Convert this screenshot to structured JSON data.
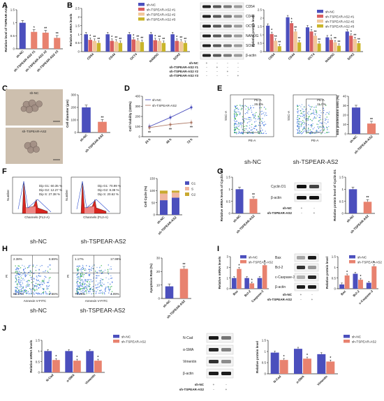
{
  "panel_labels": {
    "A": "A",
    "B": "B",
    "C": "C",
    "D": "D",
    "E": "E",
    "F": "F",
    "G": "G",
    "H": "H",
    "I": "I",
    "J": "J"
  },
  "colors": {
    "nc": "#4b4fbd",
    "sh": "#e8826f",
    "sh1": "#d96060",
    "sh2": "#f2c79a",
    "sh3": "#c9b52a",
    "g1": "#4b4fbd",
    "s": "#f0b6a0",
    "g2": "#c9a930"
  },
  "labels": {
    "sh_nc": "sh-NC",
    "sh_tspear": "sh-TSPEAR-AS2",
    "sh1": "sh-TSPEAR-AS2 #1",
    "sh2": "sh-TSPEAR-AS2 #2",
    "sh3": "sh-TSPEAR-AS2 #3",
    "beta_actin": "β-actin",
    "plus": "+",
    "minus": "-"
  },
  "wb": {
    "B_bands": [
      "CD54",
      "CD44",
      "OCT4",
      "NANOG",
      "SOX2",
      "β-actin"
    ],
    "G_bands": [
      "Cyclin D1",
      "β-actin"
    ],
    "I_bands": [
      "Bax",
      "Bcl-2",
      "c-Caspase-3",
      "β-actin"
    ],
    "J_bands": [
      "N-Cad",
      "α-SMA",
      "Vimentin",
      "β-actin"
    ]
  },
  "micro": {
    "C_top": "sh-NC",
    "C_bottom": "sh-TSPEAR-AS2"
  },
  "flow": {
    "E": [
      {
        "gate": "PE-A",
        "pct": "26.8%",
        "ylab": "SSC-A",
        "xlab": "PE-A"
      },
      {
        "gate": "PE-A",
        "pct": "11.0%",
        "ylab": "SSC-A",
        "xlab": "PE-A"
      }
    ],
    "E_names": [
      "sh-NC",
      "sh-TSPEAR-AS2"
    ],
    "F": [
      {
        "xlab": "Channels (FL2-A)",
        "ylab": "Number",
        "stats": [
          "Dip G1: 60.35 %",
          "Dip G2: 12.27 %",
          "Dip  S: 27.38 %"
        ]
      },
      {
        "xlab": "Channels (FL2-A)",
        "ylab": "Number",
        "stats": [
          "Dip G1: 70.99 %",
          "Dip G2:  8.38 %",
          "Dip  S: 20.62 %"
        ]
      }
    ],
    "F_names": [
      "sh-NC",
      "sh-TSPEAR-AS2"
    ],
    "H": [
      {
        "xlab": "Annexin V-FITC",
        "ylab": "PI",
        "q": [
          "2.38%",
          "6.69%",
          "88.27%",
          "2.66%"
        ]
      },
      {
        "xlab": "Annexin V-FITC",
        "ylab": "PI",
        "q": [
          "1.17%",
          "17.99%",
          "75.25%",
          "4.09%"
        ]
      }
    ],
    "H_names": [
      "sh-NC",
      "sh-TSPEAR-AS2"
    ]
  },
  "chart_data": [
    {
      "id": "A",
      "type": "bar",
      "ylabel": "Relative level of TSPEAR-AS2",
      "ylim": [
        0,
        1.5
      ],
      "ticks": [
        0,
        0.5,
        1,
        1.5
      ],
      "categories": [
        "sh-NC",
        "sh-TSPEAR-AS2 #1",
        "sh-TSPEAR-AS2 #2",
        "sh-TSPEAR-AS2 #3"
      ],
      "values": [
        1.0,
        0.65,
        0.62,
        0.42
      ],
      "sig": [
        "",
        "*",
        "**",
        "**"
      ]
    },
    {
      "id": "B1",
      "type": "bar",
      "ylabel": "Relative mRNA levels",
      "ylim": [
        0,
        2.5
      ],
      "ticks": [
        0,
        0.5,
        1,
        1.5,
        2,
        2.5
      ],
      "categories": [
        "CD54",
        "CD44",
        "OCT4",
        "NANOG",
        "SOX2"
      ],
      "series": [
        {
          "name": "sh-NC",
          "values": [
            1.0,
            1.0,
            1.0,
            1.0,
            1.0
          ]
        },
        {
          "name": "sh-TSPEAR-AS2 #1",
          "values": [
            0.68,
            0.62,
            0.7,
            0.66,
            0.62
          ]
        },
        {
          "name": "sh-TSPEAR-AS2 #2",
          "values": [
            0.62,
            0.58,
            0.64,
            0.62,
            0.58
          ]
        },
        {
          "name": "sh-TSPEAR-AS2 #3",
          "values": [
            0.5,
            0.5,
            0.55,
            0.5,
            0.5
          ]
        }
      ]
    },
    {
      "id": "B2",
      "type": "bar",
      "ylabel": "Relative protein level",
      "ylim": [
        0,
        2.5
      ],
      "ticks": [
        0,
        0.5,
        1,
        1.5,
        2,
        2.5
      ],
      "categories": [
        "CD54",
        "CD44",
        "OCT4",
        "NANOG",
        "SOX2"
      ],
      "series": [
        {
          "name": "sh-NC",
          "values": [
            1.55,
            2.05,
            1.45,
            0.85,
            1.2
          ]
        },
        {
          "name": "sh-TSPEAR-AS2 #1",
          "values": [
            1.05,
            1.7,
            1.2,
            0.7,
            0.95
          ]
        },
        {
          "name": "sh-TSPEAR-AS2 #2",
          "values": [
            0.65,
            1.2,
            0.95,
            0.55,
            0.75
          ]
        },
        {
          "name": "sh-TSPEAR-AS2 #3",
          "values": [
            0.32,
            0.55,
            0.48,
            0.35,
            0.5
          ]
        }
      ]
    },
    {
      "id": "C",
      "type": "bar",
      "ylabel": "Cell diameter (μm)",
      "ylim": [
        0,
        300
      ],
      "ticks": [
        0,
        100,
        200,
        300
      ],
      "categories": [
        "sh-NC",
        "sh-TSPEAR-AS2"
      ],
      "values": [
        200,
        85
      ],
      "sig": [
        "",
        "**"
      ]
    },
    {
      "id": "D",
      "type": "line",
      "ylabel": "Cell Viability (100%)",
      "ylim": [
        0,
        400
      ],
      "ticks": [
        0,
        100,
        200,
        300,
        400
      ],
      "categories": [
        "24 h",
        "48 h",
        "72 h"
      ],
      "series": [
        {
          "name": "sh-NC",
          "values": [
            100,
            190,
            290
          ]
        },
        {
          "name": "sh-TSPEAR-AS2",
          "values": [
            90,
            120,
            140
          ]
        }
      ]
    },
    {
      "id": "E",
      "type": "bar",
      "ylabel": "Edu proliferation cells (%)",
      "ylim": [
        0,
        40
      ],
      "ticks": [
        0,
        10,
        20,
        30,
        40
      ],
      "categories": [
        "sh-NC",
        "sh-TSPEAR-AS2"
      ],
      "values": [
        28,
        11
      ],
      "sig": [
        "",
        "**"
      ]
    },
    {
      "id": "F",
      "type": "bar",
      "ylabel": "Cell Cycle (%)",
      "ylim": [
        0,
        150
      ],
      "ticks": [
        0,
        50,
        100,
        150
      ],
      "categories": [
        "sh-NC",
        "sh-TSPEAR-AS2"
      ],
      "series": [
        {
          "name": "G1",
          "values": [
            60.35,
            70.99
          ]
        },
        {
          "name": "S",
          "values": [
            27.38,
            20.62
          ]
        },
        {
          "name": "G2",
          "values": [
            12.27,
            8.38
          ]
        }
      ]
    },
    {
      "id": "G1",
      "type": "bar",
      "ylabel": "Relative mRNA levels of Cyclin D1",
      "ylim": [
        0,
        1.5
      ],
      "ticks": [
        0,
        0.5,
        1,
        1.5
      ],
      "categories": [
        "sh-NC",
        "sh-TSPEAR-AS2"
      ],
      "values": [
        1.0,
        0.6
      ],
      "sig": [
        "",
        "**"
      ]
    },
    {
      "id": "G2",
      "type": "bar",
      "ylabel": "Relative protein level of Cyclin D1",
      "ylim": [
        0,
        1.5
      ],
      "ticks": [
        0,
        0.5,
        1,
        1.5
      ],
      "categories": [
        "sh-NC",
        "sh-TSPEAR-AS2"
      ],
      "values": [
        1.0,
        0.48
      ],
      "sig": [
        "",
        "**"
      ]
    },
    {
      "id": "H",
      "type": "bar",
      "ylabel": "Apoptosis Rate (%)",
      "ylim": [
        0,
        30
      ],
      "ticks": [
        0,
        10,
        20,
        30
      ],
      "categories": [
        "sh-NC",
        "sh-TSPEAR-AS2"
      ],
      "values": [
        9,
        22
      ],
      "sig": [
        "",
        "**"
      ]
    },
    {
      "id": "I1",
      "type": "bar",
      "ylabel": "Relative mRNA levels",
      "ylim": [
        0,
        3
      ],
      "ticks": [
        0,
        1,
        2,
        3
      ],
      "categories": [
        "Bax",
        "Bcl-2",
        "Caspase-3"
      ],
      "series": [
        {
          "name": "sh-NC",
          "values": [
            1.0,
            1.0,
            1.0
          ]
        },
        {
          "name": "sh-TSPEAR-AS2",
          "values": [
            1.85,
            0.5,
            2.2
          ]
        }
      ]
    },
    {
      "id": "I2",
      "type": "bar",
      "ylabel": "Relative protein level",
      "ylim": [
        0,
        1.5
      ],
      "ticks": [
        0,
        0.5,
        1,
        1.5
      ],
      "categories": [
        "Bax",
        "Bcl-2",
        "c-Caspase-3"
      ],
      "series": [
        {
          "name": "sh-NC",
          "values": [
            0.2,
            0.7,
            0.28
          ]
        },
        {
          "name": "sh-TSPEAR-AS2",
          "values": [
            0.62,
            0.42,
            1.05
          ]
        }
      ]
    },
    {
      "id": "J1",
      "type": "bar",
      "ylabel": "Relative mRNA levels",
      "ylim": [
        0,
        1.5
      ],
      "ticks": [
        0,
        0.5,
        1,
        1.5
      ],
      "categories": [
        "N-Cad",
        "α-SMA",
        "Vimentin"
      ],
      "series": [
        {
          "name": "sh-NC",
          "values": [
            1.0,
            1.0,
            1.0
          ]
        },
        {
          "name": "sh-TSPEAR-AS2",
          "values": [
            0.58,
            0.55,
            0.55
          ]
        }
      ]
    },
    {
      "id": "J2",
      "type": "bar",
      "ylabel": "Relative protein level",
      "ylim": [
        0,
        1.5
      ],
      "ticks": [
        0,
        0.5,
        1,
        1.5
      ],
      "categories": [
        "N-Cad",
        "α-SMA",
        "Vimentin"
      ],
      "series": [
        {
          "name": "sh-NC",
          "values": [
            0.95,
            1.12,
            0.88
          ]
        },
        {
          "name": "sh-TSPEAR-AS2",
          "values": [
            0.62,
            0.68,
            0.55
          ]
        }
      ]
    }
  ]
}
